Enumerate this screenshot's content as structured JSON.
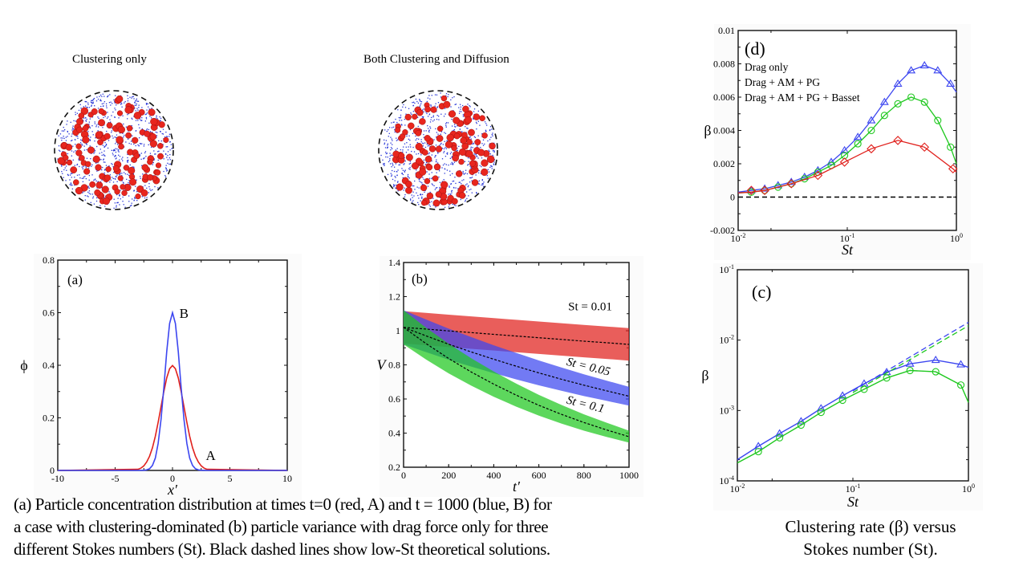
{
  "scatter_panels": [
    {
      "title": "Clustering only"
    },
    {
      "title": "Both Clustering and Diffusion"
    }
  ],
  "colors": {
    "red": "#e0201c",
    "blue": "#3c46f0",
    "green": "#1ec81e",
    "particle_red": "#e8261e",
    "tracer_blue": "#2a38d8"
  },
  "caption_left": {
    "lines": [
      "(a) Particle concentration distribution at times t=0  (red, A) and  t = 1000 (blue, B) for",
      "a case with clustering-dominated (b) particle variance with drag force only for three",
      "different Stokes numbers (St). Black dashed lines show low-St theoretical solutions."
    ]
  },
  "caption_right": {
    "lines": [
      "Clustering rate (β) versus",
      "Stokes number (St)."
    ]
  },
  "chart_data": [
    {
      "id": "a",
      "type": "line",
      "panel_label": "(a)",
      "xlabel": "x′",
      "ylabel": "ϕ",
      "xlim": [
        -10,
        10
      ],
      "ylim": [
        0,
        0.8
      ],
      "xticks": [
        "-10",
        "-5",
        "0",
        "5",
        "10"
      ],
      "yticks": [
        "0",
        "0.2",
        "0.4",
        "0.6",
        "0.8"
      ],
      "x": [
        -10,
        -3,
        -2.75,
        -2.5,
        -2.25,
        -2,
        -1.75,
        -1.5,
        -1.25,
        -1,
        -0.75,
        -0.5,
        -0.25,
        0,
        0.25,
        0.5,
        0.75,
        1,
        1.25,
        1.5,
        1.75,
        2,
        2.25,
        2.5,
        2.75,
        3,
        10
      ],
      "series": [
        {
          "name": "A",
          "color": "#e0201c",
          "values": [
            0,
            0.0044,
            0.009,
            0.0175,
            0.032,
            0.054,
            0.086,
            0.13,
            0.183,
            0.242,
            0.301,
            0.352,
            0.387,
            0.399,
            0.387,
            0.352,
            0.301,
            0.242,
            0.183,
            0.13,
            0.086,
            0.054,
            0.032,
            0.0175,
            0.009,
            0.0044,
            0
          ]
        },
        {
          "name": "B",
          "color": "#3c46f0",
          "values": [
            0,
            0,
            0.0001,
            0.0005,
            0.002,
            0.0065,
            0.0188,
            0.047,
            0.1025,
            0.194,
            0.318,
            0.452,
            0.559,
            0.6,
            0.559,
            0.452,
            0.318,
            0.194,
            0.1025,
            0.047,
            0.0188,
            0.0065,
            0.002,
            0.0005,
            0.0001,
            0,
            0
          ]
        }
      ],
      "grid": false
    },
    {
      "id": "b",
      "type": "area",
      "panel_label": "(b)",
      "xlabel": "t′",
      "ylabel": "V",
      "xlim": [
        0,
        1000
      ],
      "ylim": [
        0.2,
        1.4
      ],
      "xticks": [
        "0",
        "200",
        "400",
        "600",
        "800",
        "1000"
      ],
      "yticks": [
        "0.2",
        "0.4",
        "0.6",
        "0.8",
        "1",
        "1.2",
        "1.4"
      ],
      "x": [
        0,
        100,
        200,
        300,
        400,
        500,
        600,
        700,
        800,
        900,
        1000
      ],
      "series": [
        {
          "name": "St = 0.01",
          "color": "#e0201c",
          "upper": [
            1.115,
            1.105,
            1.094,
            1.084,
            1.074,
            1.064,
            1.054,
            1.044,
            1.034,
            1.025,
            1.015
          ],
          "lower": [
            0.925,
            0.915,
            0.904,
            0.894,
            0.884,
            0.874,
            0.864,
            0.854,
            0.844,
            0.835,
            0.825
          ],
          "theory": [
            1.02,
            1.01,
            0.999,
            0.989,
            0.979,
            0.969,
            0.959,
            0.949,
            0.939,
            0.93,
            0.92
          ]
        },
        {
          "name": "St = 0.05",
          "color": "#3c46f0",
          "upper": [
            1.12,
            1.066,
            1.012,
            0.963,
            0.915,
            0.87,
            0.826,
            0.785,
            0.745,
            0.708,
            0.671
          ],
          "lower": [
            0.92,
            0.875,
            0.83,
            0.79,
            0.751,
            0.715,
            0.68,
            0.648,
            0.617,
            0.589,
            0.561
          ],
          "theory": [
            1.02,
            0.97,
            0.921,
            0.876,
            0.833,
            0.792,
            0.753,
            0.716,
            0.681,
            0.648,
            0.616
          ]
        },
        {
          "name": "St = 0.1",
          "color": "#1ec81e",
          "upper": [
            1.12,
            1.018,
            0.924,
            0.839,
            0.761,
            0.69,
            0.624,
            0.565,
            0.51,
            0.461,
            0.414
          ],
          "lower": [
            0.92,
            0.831,
            0.75,
            0.678,
            0.613,
            0.555,
            0.502,
            0.456,
            0.414,
            0.378,
            0.344
          ],
          "theory": [
            1.02,
            0.924,
            0.837,
            0.758,
            0.687,
            0.622,
            0.563,
            0.51,
            0.462,
            0.419,
            0.379
          ]
        }
      ],
      "grid": false
    },
    {
      "id": "d",
      "type": "line",
      "panel_label": "(d)",
      "xlabel": "St",
      "ylabel": "β",
      "xscale": "log",
      "xlim": [
        0.01,
        1
      ],
      "ylim": [
        -0.002,
        0.01
      ],
      "xticks": [
        "10-2",
        "10-1",
        "100"
      ],
      "yticks": [
        "-0.002",
        "0",
        "0.002",
        "0.004",
        "0.006",
        "0.008",
        "0.01"
      ],
      "legend": [
        "Drag only",
        "Drag + AM + PG",
        "Drag + AM + PG + Basset"
      ],
      "legend_position": "top-left",
      "zero_line": "dashed",
      "series": [
        {
          "name": "Drag only",
          "color": "#3c46f0",
          "marker": "triangle",
          "x": [
            0.0132,
            0.0175,
            0.0232,
            0.0307,
            0.0406,
            0.0538,
            0.0713,
            0.0944,
            0.125,
            0.166,
            0.219,
            0.291,
            0.385,
            0.51,
            0.675,
            0.883
          ],
          "values": [
            0.0004,
            0.0005,
            0.0007,
            0.0009,
            0.0012,
            0.0016,
            0.0021,
            0.0028,
            0.0036,
            0.0046,
            0.0057,
            0.0068,
            0.0076,
            0.0079,
            0.0076,
            0.0068
          ],
          "curve_x": [
            0.01,
            0.0132,
            0.0175,
            0.0232,
            0.0307,
            0.0406,
            0.0538,
            0.0713,
            0.0944,
            0.125,
            0.166,
            0.219,
            0.291,
            0.385,
            0.51,
            0.675,
            0.883,
            1
          ],
          "curve": [
            0.0003,
            0.0004,
            0.0005,
            0.0007,
            0.0009,
            0.0012,
            0.0016,
            0.0021,
            0.0028,
            0.0036,
            0.0046,
            0.0057,
            0.0068,
            0.0076,
            0.0079,
            0.0076,
            0.0068,
            0.0063
          ]
        },
        {
          "name": "Drag + AM + PG",
          "color": "#1ec81e",
          "marker": "circle",
          "x": [
            0.0132,
            0.0175,
            0.0232,
            0.0307,
            0.0406,
            0.0538,
            0.0713,
            0.0944,
            0.125,
            0.166,
            0.219,
            0.291,
            0.385,
            0.51,
            0.675,
            0.883
          ],
          "values": [
            0.0003,
            0.0004,
            0.0006,
            0.0008,
            0.0011,
            0.0015,
            0.0019,
            0.0025,
            0.0032,
            0.004,
            0.0049,
            0.0056,
            0.006,
            0.0057,
            0.0046,
            0.003
          ],
          "curve_x": [
            0.01,
            0.0132,
            0.0175,
            0.0232,
            0.0307,
            0.0406,
            0.0538,
            0.0713,
            0.0944,
            0.125,
            0.166,
            0.219,
            0.291,
            0.385,
            0.51,
            0.675,
            0.883,
            1
          ],
          "curve": [
            0.00025,
            0.0003,
            0.0004,
            0.0006,
            0.0008,
            0.0011,
            0.0015,
            0.0019,
            0.0025,
            0.0032,
            0.004,
            0.0049,
            0.0056,
            0.006,
            0.0057,
            0.0046,
            0.003,
            0.002
          ]
        },
        {
          "name": "Drag + AM + PG + Basset",
          "color": "#e0201c",
          "marker": "diamond",
          "x": [
            0.0132,
            0.0175,
            0.0307,
            0.0538,
            0.0944,
            0.166,
            0.291,
            0.51,
            0.93
          ],
          "values": [
            0.0004,
            0.0004,
            0.0008,
            0.0013,
            0.0021,
            0.0029,
            0.0034,
            0.003,
            0.0017
          ],
          "curve_x": [
            0.01,
            0.0132,
            0.0175,
            0.0307,
            0.0538,
            0.0944,
            0.166,
            0.291,
            0.51,
            0.93,
            1
          ],
          "curve": [
            0.00025,
            0.0003,
            0.0004,
            0.0008,
            0.0013,
            0.0021,
            0.0029,
            0.0034,
            0.003,
            0.0017,
            0.0015
          ]
        }
      ],
      "grid": false
    },
    {
      "id": "c",
      "type": "line",
      "panel_label": "(c)",
      "xlabel": "St",
      "ylabel": "β",
      "xscale": "log",
      "yscale": "log",
      "xlim": [
        0.01,
        1
      ],
      "ylim": [
        0.0001,
        0.1
      ],
      "xticks": [
        "10-2",
        "10-1",
        "100"
      ],
      "yticks": [
        "10-4",
        "10-3",
        "10-2",
        "10-1"
      ],
      "series": [
        {
          "color": "#3c46f0",
          "marker": "triangle",
          "x": [
            0.0152,
            0.0232,
            0.0356,
            0.053,
            0.0814,
            0.125,
            0.196,
            0.312,
            0.521,
            0.86
          ],
          "values": [
            0.00031,
            0.00047,
            0.0007,
            0.00107,
            0.00162,
            0.0024,
            0.0035,
            0.0046,
            0.0052,
            0.0045
          ],
          "curve_x": [
            0.01,
            0.0152,
            0.0232,
            0.0356,
            0.053,
            0.0814,
            0.125,
            0.196,
            0.312,
            0.521,
            0.86,
            1
          ],
          "curve": [
            0.0002,
            0.00031,
            0.00047,
            0.0007,
            0.00107,
            0.00162,
            0.0024,
            0.0035,
            0.0046,
            0.0052,
            0.0045,
            0.0041
          ],
          "theory_x": [
            0.1,
            1
          ],
          "theory": [
            0.0019,
            0.0179
          ]
        },
        {
          "color": "#1ec81e",
          "marker": "circle",
          "x": [
            0.0152,
            0.0232,
            0.0356,
            0.053,
            0.0814,
            0.125,
            0.196,
            0.312,
            0.521,
            0.86
          ],
          "values": [
            0.00026,
            0.00041,
            0.00062,
            0.00094,
            0.0014,
            0.002,
            0.0029,
            0.0037,
            0.00355,
            0.0023
          ],
          "curve_x": [
            0.01,
            0.0152,
            0.0232,
            0.0356,
            0.053,
            0.0814,
            0.125,
            0.196,
            0.312,
            0.521,
            0.86,
            1
          ],
          "curve": [
            0.00018,
            0.00026,
            0.00041,
            0.00062,
            0.00094,
            0.0014,
            0.002,
            0.0029,
            0.0037,
            0.00355,
            0.0023,
            0.0013
          ],
          "theory_x": [
            0.1,
            1
          ],
          "theory": [
            0.0018,
            0.016
          ]
        }
      ],
      "grid": false
    }
  ]
}
